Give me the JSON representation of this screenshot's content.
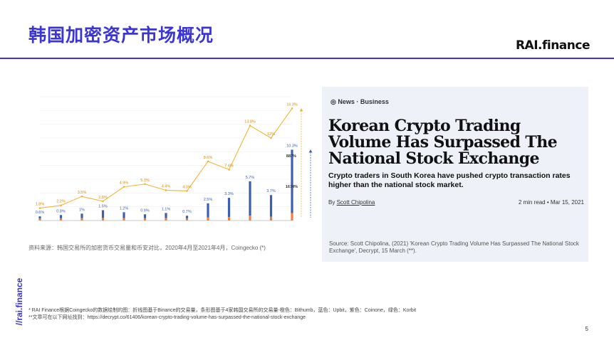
{
  "slide": {
    "title": "韩国加密资产市场概况",
    "logo": "RAI.finance",
    "vertical_logo": "//rai.finance",
    "page_number": "5"
  },
  "left_source": "资料来源：韩国交易所的加密货币交易量和币安对比，2020年4月至2021年4月，Coingecko (*)",
  "news": {
    "category": "News · Business",
    "headline": "Korean Crypto Trading Volume Has Surpassed The National Stock Exchange",
    "subhead": "Crypto traders in South Korea have pushed crypto transaction rates higher than the national stock market.",
    "byline_prefix": "By ",
    "author": "Scott Chipolina",
    "meta": "2 min read • Mar 15, 2021",
    "source": "Source: Scott Chipolina, (2021)   'Korean Crypto Trading Volume Has Surpassed The National Stock Exchange', Decrypt, 15 March (**)."
  },
  "footnotes": {
    "line1": "* RAI Finance根据Coingecko的数据绘制的图：折线图基于Binance的交易量，条形图基于4家韩国交易所的交易量-橙色：Bithumb，蓝色：Upbit，紫色：Coinone，绿色：Korbit",
    "line2": "**文章可在以下网址找到：https://decrypt.co/61406/korean-crypto-trading-volume-has-surpassed-the-national-stock-exchange"
  },
  "colors": {
    "accent": "#3a35d4",
    "line": "#f5b335",
    "bithumb": "#f07f3c",
    "upbit": "#3d5fb0"
  },
  "chart_data": {
    "type": "line",
    "line_labels": [
      "1.8%",
      "2.2%",
      "3.5%",
      "2.8%",
      "4.9%",
      "5.3%",
      "4.4%",
      "4.3%",
      "8.6%",
      "7.4%",
      "13.8%",
      "12%",
      "16.3%"
    ],
    "line_values": [
      1.8,
      2.2,
      3.5,
      2.8,
      4.9,
      5.3,
      4.4,
      4.3,
      8.6,
      7.4,
      13.8,
      12,
      16.3
    ],
    "bar_labels": [
      "0.6%",
      "0.8%",
      "1%",
      "1.5%",
      "1.2%",
      "0.9%",
      "1.1%",
      "0.7%",
      "2.5%",
      "3.3%",
      "5.7%",
      "3.7%",
      "10.3%"
    ],
    "bar_values": [
      0.6,
      0.8,
      1.0,
      1.5,
      1.2,
      0.9,
      1.1,
      0.7,
      2.5,
      3.3,
      5.7,
      3.7,
      10.3
    ],
    "ylim": [
      0,
      18
    ],
    "annotations": [
      "887%",
      "1674%"
    ]
  }
}
